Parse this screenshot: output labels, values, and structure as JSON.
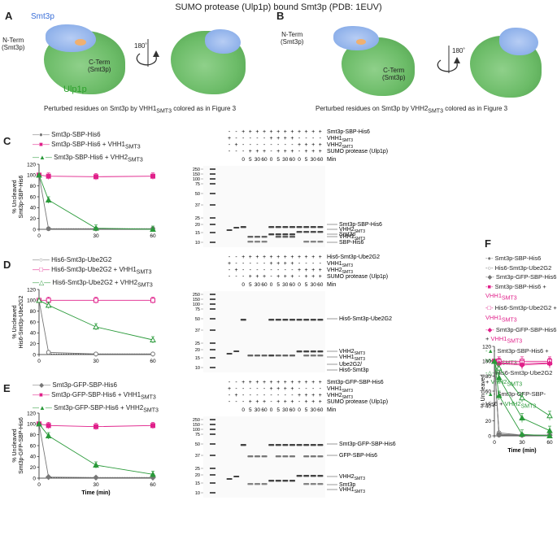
{
  "title": "SUMO protease (Ulp1p) bound Smt3p (PDB: 1EUV)",
  "panel_a": {
    "letter": "A",
    "smt3p_label": "Smt3p",
    "nterm": "N-Term",
    "nterm_sub": "(Smt3p)",
    "cterm": "C-Term",
    "cterm_sub": "(Smt3p)",
    "ulp1p_label": "Ulp1p",
    "rotation": "180˚",
    "caption": "Perturbed residues on Smt3p by VHH1",
    "caption_sub": "SMT3",
    "caption_end": " colored as in Figure 3"
  },
  "panel_b": {
    "letter": "B",
    "nterm": "N-Term",
    "nterm_sub": "(Smt3p)",
    "cterm": "C-Term",
    "cterm_sub": "(Smt3p)",
    "rotation": "180˚",
    "caption": "Perturbed residues on Smt3p by VHH2",
    "caption_sub": "SMT3",
    "caption_end": " colored as in Figure 3"
  },
  "colors": {
    "gray": "#777777",
    "magenta": "#e0208a",
    "green": "#2a9a3a"
  },
  "shared": {
    "xlabel": "Time (min)",
    "min_label": "Min",
    "protease": "SUMO protease (Ulp1p)",
    "vhh1": "VHH1",
    "vhh2": "VHH2",
    "smt3": "SMT3",
    "mw_markers": [
      "250",
      "150",
      "100",
      "75",
      "50",
      "37",
      "25",
      "20",
      "15",
      "10"
    ],
    "time_lanes": [
      "0",
      "5",
      "30",
      "60",
      "0",
      "5",
      "30",
      "60",
      "0",
      "5",
      "30",
      "60"
    ],
    "row_substrate": [
      "-",
      "-",
      "+",
      "+",
      "+",
      "+",
      "+",
      "+",
      "+",
      "+",
      "+",
      "+",
      "+",
      "+"
    ],
    "row_vhh1": [
      "+",
      "-",
      "-",
      "-",
      "-",
      "-",
      "+",
      "+",
      "+",
      "+",
      "-",
      "-",
      "-",
      "-"
    ],
    "row_vhh2": [
      "-",
      "+",
      "-",
      "-",
      "-",
      "-",
      "-",
      "-",
      "-",
      "-",
      "+",
      "+",
      "+",
      "+"
    ],
    "row_protease": [
      "-",
      "-",
      "-",
      "+",
      "+",
      "+",
      "-",
      "+",
      "+",
      "+",
      "-",
      "+",
      "+",
      "+"
    ]
  },
  "panel_c": {
    "letter": "C",
    "ylabel": "% Uncleaved",
    "ylabel2": "Smt3p-SBP-His6",
    "legend": [
      "Smt3p-SBP-His6",
      "Smt3p-SBP-His6 + VHH1",
      "Smt3p-SBP-His6 + VHH2"
    ],
    "gel_header": "Smt3p-SBP-His6",
    "bands": [
      "Smt3p-SBP-His6",
      "VHH2",
      "Smt3p",
      "VHH1",
      "SBP-His6"
    ]
  },
  "panel_d": {
    "letter": "D",
    "ylabel": "% Uncleaved",
    "ylabel2": "His6-Smt3p-Ube2G2",
    "legend": [
      "His6-Smt3p-Ube2G2",
      "His6-Smt3p-Ube2G2 + VHH1",
      "His6-Smt3p-Ube2G2 + VHH2"
    ],
    "gel_header": "His6-Smt3p-Ube2G2",
    "bands": [
      "His6-Smt3p-Ube2G2",
      "VHH2",
      "VHH1",
      "Ube2G2/",
      "His6-Smt3p"
    ]
  },
  "panel_e": {
    "letter": "E",
    "ylabel": "% Uncleaved",
    "ylabel2": "Smt3p-GFP-SBP-His6",
    "legend": [
      "Smt3p-GFP-SBP-His6",
      "Smt3p-GFP-SBP-His6 + VHH1",
      "Smt3p-GFP-SBP-His6 + VHH2"
    ],
    "gel_header": "Smt3p-GFP-SBP-His6",
    "bands": [
      "Smt3p-GFP-SBP-His6",
      "GFP-SBP-His6",
      "VHH2",
      "Smt3p",
      "VHH1"
    ]
  },
  "panel_f": {
    "letter": "F",
    "ylabel": "% Uncleaved",
    "legend": [
      "Smt3p-SBP-His6",
      "His6-Smt3p-Ube2G2",
      "Smt3p-GFP-SBP-His6",
      "Smt3p-SBP-His6 + ",
      "His6-Smt3p-Ube2G2 + ",
      "Smt3p-GFP-SBP-His6 + ",
      "Smt3p-SBP-His6 + ",
      "His6-Smt3p-Ube2G2 + ",
      "Smt3p-GFP-SBP-His6 + "
    ]
  },
  "chart_data": [
    {
      "type": "line",
      "id": "C",
      "x": [
        0,
        5,
        30,
        60
      ],
      "xlim": [
        0,
        60
      ],
      "ylim": [
        0,
        120
      ],
      "yticks": [
        0,
        20,
        40,
        60,
        80,
        100,
        120
      ],
      "xticks": [
        0,
        30,
        60
      ],
      "xlabel": "Time (min)",
      "ylabel": "% Uncleaved Smt3p-SBP-His6",
      "series": [
        {
          "name": "Smt3p-SBP-His6",
          "color": "#777777",
          "values": [
            100,
            1,
            1,
            1
          ]
        },
        {
          "name": "Smt3p-SBP-His6 + VHH1SMT3",
          "color": "#e0208a",
          "values": [
            100,
            98,
            97,
            98
          ]
        },
        {
          "name": "Smt3p-SBP-His6 + VHH2SMT3",
          "color": "#2a9a3a",
          "values": [
            100,
            54,
            2,
            0
          ]
        }
      ]
    },
    {
      "type": "line",
      "id": "D",
      "x": [
        0,
        5,
        30,
        60
      ],
      "xlim": [
        0,
        60
      ],
      "ylim": [
        0,
        120
      ],
      "yticks": [
        0,
        20,
        40,
        60,
        80,
        100,
        120
      ],
      "xticks": [
        0,
        30,
        60
      ],
      "xlabel": "Time (min)",
      "ylabel": "% Uncleaved His6-Smt3p-Ube2G2",
      "series": [
        {
          "name": "His6-Smt3p-Ube2G2",
          "color": "#777777",
          "values": [
            100,
            4,
            1,
            1
          ]
        },
        {
          "name": "His6-Smt3p-Ube2G2 + VHH1SMT3",
          "color": "#e0208a",
          "values": [
            100,
            100,
            100,
            100
          ]
        },
        {
          "name": "His6-Smt3p-Ube2G2 + VHH2SMT3",
          "color": "#2a9a3a",
          "values": [
            100,
            91,
            51,
            27
          ]
        }
      ]
    },
    {
      "type": "line",
      "id": "E",
      "x": [
        0,
        5,
        30,
        60
      ],
      "xlim": [
        0,
        60
      ],
      "ylim": [
        0,
        120
      ],
      "yticks": [
        0,
        20,
        40,
        60,
        80,
        100,
        120
      ],
      "xticks": [
        0,
        30,
        60
      ],
      "xlabel": "Time (min)",
      "ylabel": "% Uncleaved Smt3p-GFP-SBP-His6",
      "series": [
        {
          "name": "Smt3p-GFP-SBP-His6",
          "color": "#777777",
          "values": [
            100,
            2,
            1,
            1
          ]
        },
        {
          "name": "Smt3p-GFP-SBP-His6 + VHH1SMT3",
          "color": "#e0208a",
          "values": [
            100,
            97,
            95,
            97
          ]
        },
        {
          "name": "Smt3p-GFP-SBP-His6 + VHH2SMT3",
          "color": "#2a9a3a",
          "values": [
            100,
            78,
            24,
            7
          ]
        }
      ]
    },
    {
      "type": "line",
      "id": "F",
      "x": [
        0,
        5,
        30,
        60
      ],
      "xlim": [
        0,
        60
      ],
      "ylim": [
        0,
        120
      ],
      "yticks": [
        0,
        20,
        40,
        60,
        80,
        100,
        120
      ],
      "xticks": [
        0,
        30,
        60
      ],
      "xlabel": "Time (min)",
      "ylabel": "% Uncleaved",
      "series": [
        {
          "name": "Smt3p-SBP-His6",
          "color": "#777777",
          "values": [
            100,
            1,
            1,
            1
          ]
        },
        {
          "name": "His6-Smt3p-Ube2G2",
          "color": "#777777",
          "values": [
            100,
            4,
            1,
            1
          ]
        },
        {
          "name": "Smt3p-GFP-SBP-His6",
          "color": "#777777",
          "values": [
            100,
            2,
            1,
            1
          ]
        },
        {
          "name": "Smt3p-SBP-His6 + VHH1SMT3",
          "color": "#e0208a",
          "values": [
            100,
            98,
            97,
            98
          ]
        },
        {
          "name": "His6-Smt3p-Ube2G2 + VHH1SMT3",
          "color": "#e0208a",
          "values": [
            100,
            100,
            100,
            100
          ]
        },
        {
          "name": "Smt3p-GFP-SBP-His6 + VHH1SMT3",
          "color": "#e0208a",
          "values": [
            100,
            97,
            95,
            97
          ]
        },
        {
          "name": "Smt3p-SBP-His6 + VHH2SMT3",
          "color": "#2a9a3a",
          "values": [
            100,
            54,
            2,
            0
          ]
        },
        {
          "name": "His6-Smt3p-Ube2G2 + VHH2SMT3",
          "color": "#2a9a3a",
          "values": [
            100,
            91,
            51,
            27
          ]
        },
        {
          "name": "Smt3p-GFP-SBP-His6 + VHH2SMT3",
          "color": "#2a9a3a",
          "values": [
            100,
            78,
            24,
            7
          ]
        }
      ]
    }
  ]
}
